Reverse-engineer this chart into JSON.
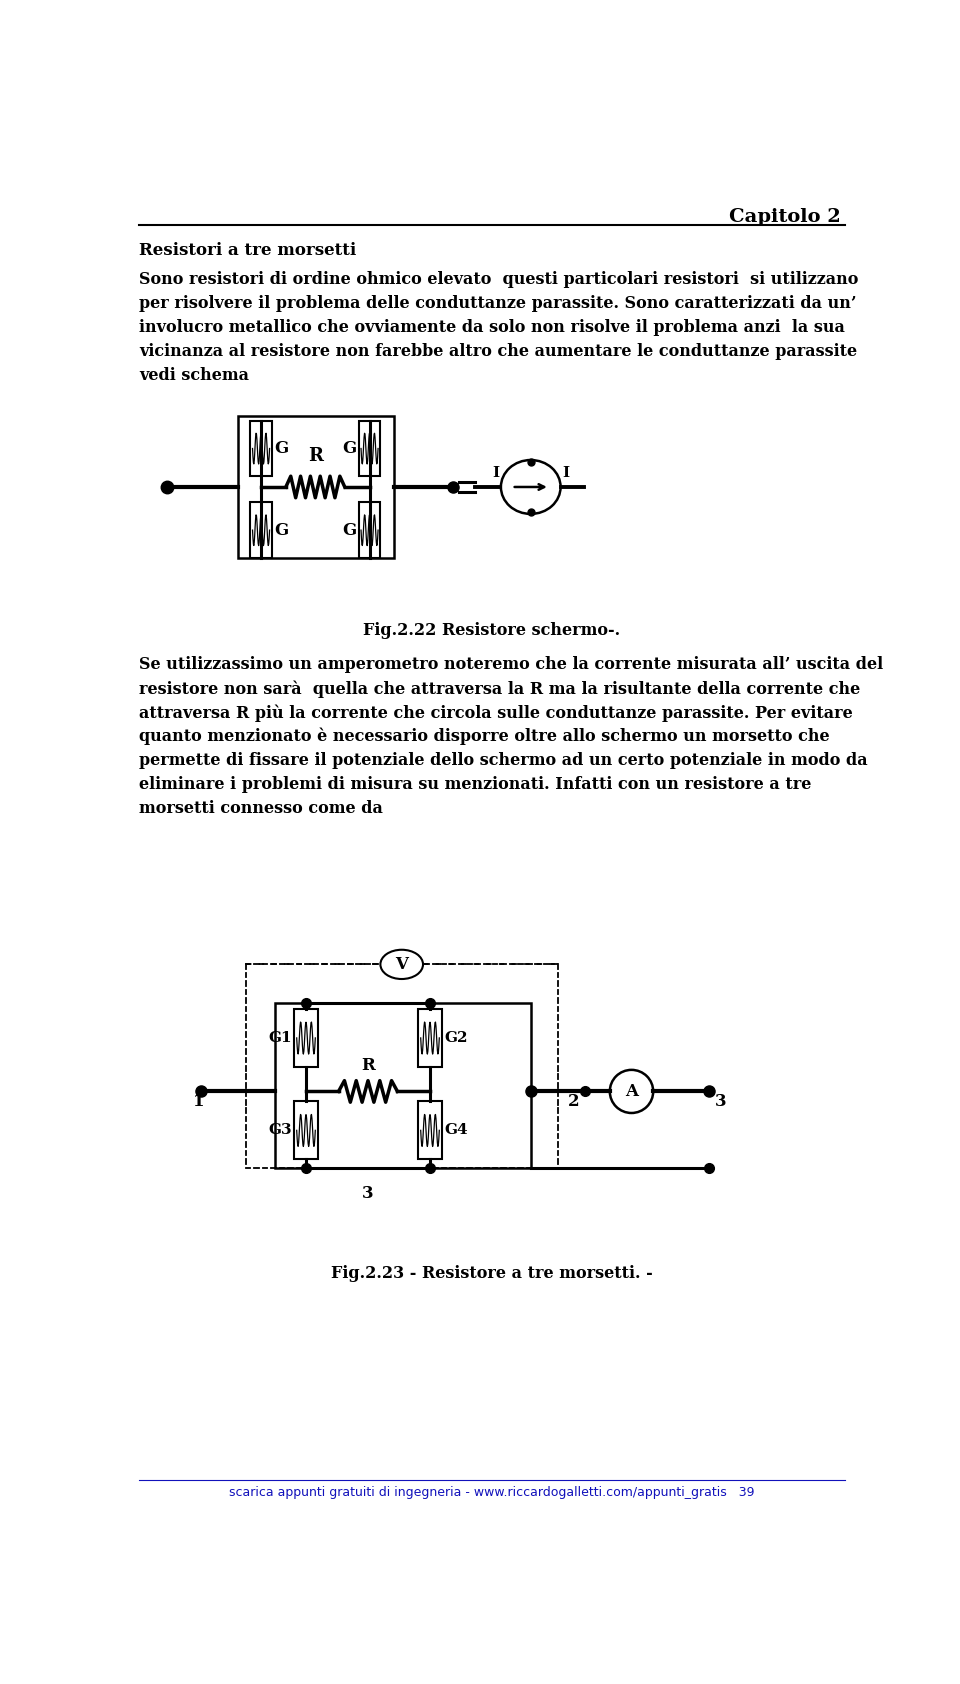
{
  "title_right": "Capitolo 2",
  "heading": "Resistori a tre morsetti",
  "para1_lines": [
    "Sono resistori di ordine ohmico elevato  questi particolari resistori  si utilizzano",
    "per risolvere il problema delle conduttanze parassite. Sono caratterizzati da un’",
    "involucro metallico che ovviamente da solo non risolve il problema anzi  la sua",
    "vicinanza al resistore non farebbe altro che aumentare le conduttanze parassite",
    "vedi schema"
  ],
  "fig1_caption": "Fig.2.22 Resistore schermo-.",
  "para2_lines": [
    "Se utilizzassimo un amperometro noteremo che la corrente misurata all’ uscita del",
    "resistore non sarà  quella che attraversa la R ma la risultante della corrente che",
    "attraversa R più la corrente che circola sulle conduttanze parassite. Per evitare",
    "quanto menzionato è necessario disporre oltre allo schermo un morsetto che",
    "permette di fissare il potenziale dello schermo ad un certo potenziale in modo da",
    "eliminare i problemi di misura su menzionati. Infatti con un resistore a tre",
    "morsetti connesso come da"
  ],
  "fig2_caption": "Fig.2.23 - Resistore a tre morsetti. -",
  "footer": "scarica appunti gratuiti di ingegneria - www.riccardogalletti.com/appunti_gratis   39",
  "bg_color": "#ffffff"
}
